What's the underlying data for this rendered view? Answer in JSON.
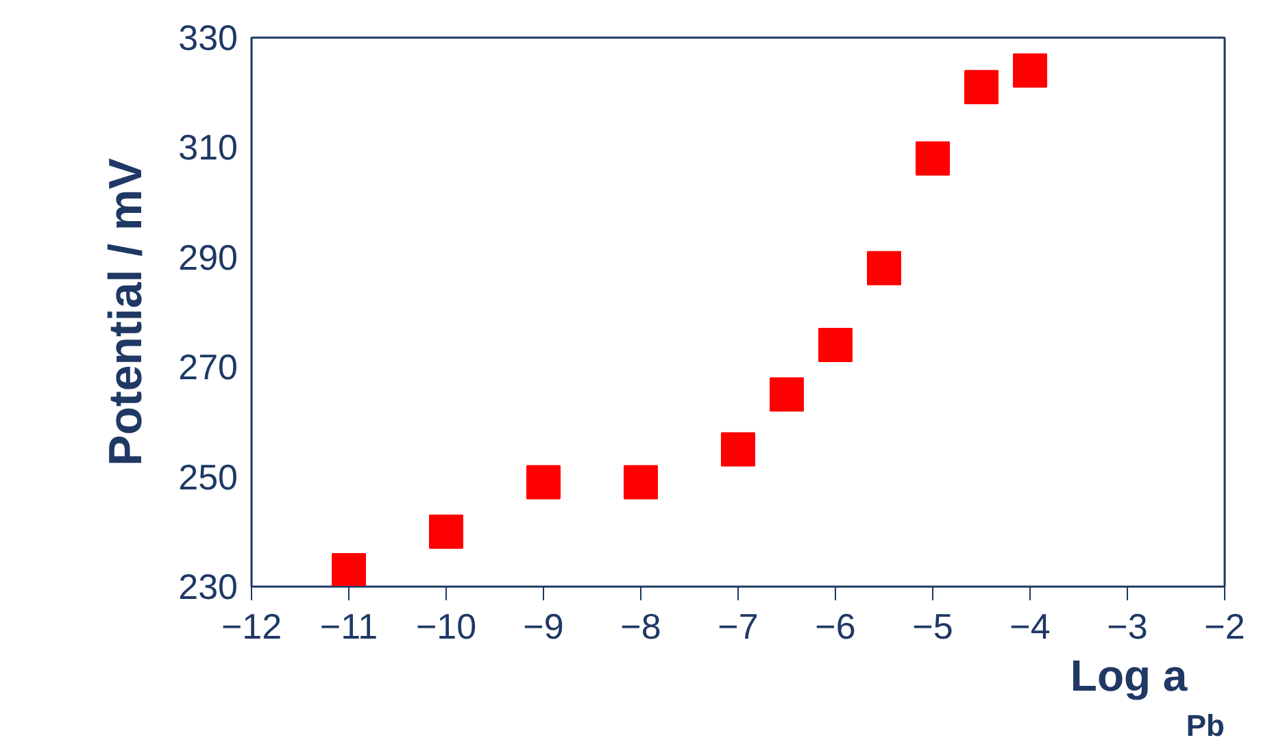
{
  "chart_data": {
    "type": "scatter",
    "xlabel": "Log a$_{Pb}$",
    "ylabel": "Potential / mV",
    "x": [
      -11,
      -10,
      -9,
      -8,
      -7,
      -6.5,
      -6,
      -5.5,
      -5,
      -4.5,
      -4
    ],
    "series": [
      {
        "color": "#ff0000",
        "values": [
          233,
          240,
          249,
          249,
          255,
          265,
          274,
          288,
          308,
          321,
          324
        ]
      }
    ],
    "marker": "square",
    "xlim": [
      -12,
      -2
    ],
    "ylim": [
      230,
      330
    ],
    "xticks": [
      -12,
      -11,
      -10,
      -9,
      -8,
      -7,
      -6,
      -5,
      -4,
      -3,
      -2
    ],
    "yticks": [
      230,
      250,
      270,
      290,
      310,
      330
    ]
  }
}
